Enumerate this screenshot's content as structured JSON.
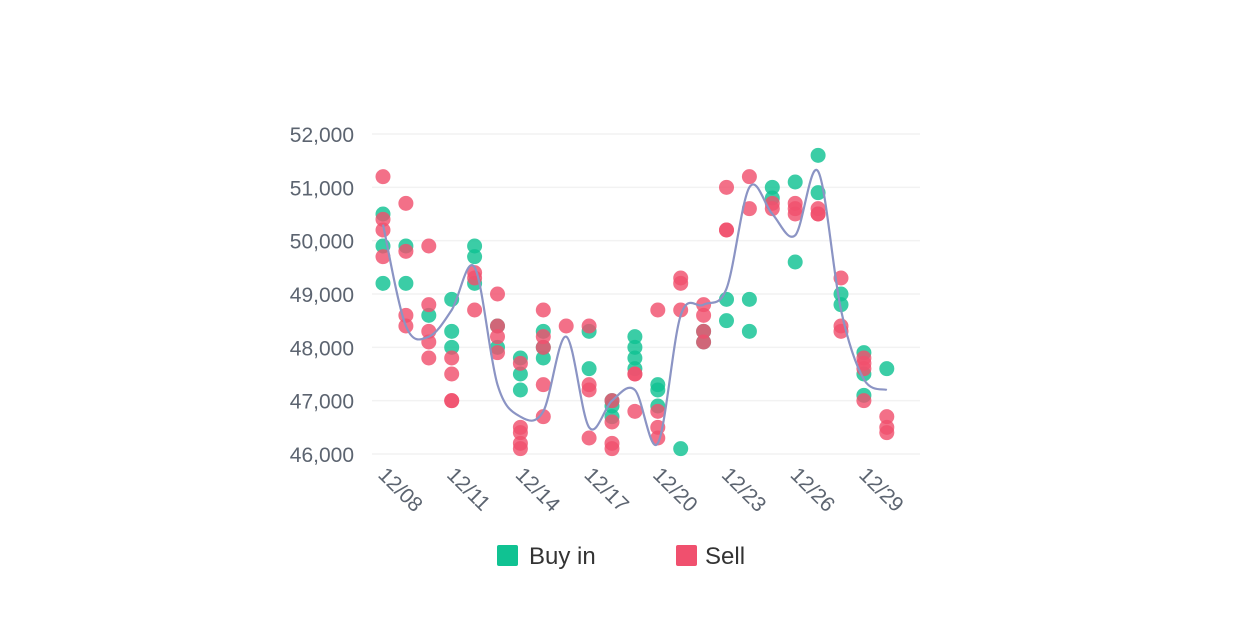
{
  "chart_data": {
    "type": "scatter",
    "title": "",
    "xlabel": "",
    "ylabel": "",
    "ylim": [
      46000,
      52000
    ],
    "y_ticks": [
      "52,000",
      "51,000",
      "50,000",
      "49,000",
      "48,000",
      "47,000",
      "46,000"
    ],
    "x_ticks": [
      "12/08",
      "12/11",
      "12/14",
      "12/17",
      "12/20",
      "12/23",
      "12/26",
      "12/29"
    ],
    "grid": true,
    "legend_position": "bottom",
    "colors": {
      "buy": "#10c292",
      "sell": "#f0506e",
      "trend": "#8b94c4"
    },
    "trend_line": {
      "x": [
        "12/08",
        "12/09",
        "12/10",
        "12/11",
        "12/12",
        "12/13",
        "12/14",
        "12/15",
        "12/16",
        "12/17",
        "12/18",
        "12/19",
        "12/20",
        "12/21",
        "12/22",
        "12/23",
        "12/24",
        "12/25",
        "12/26",
        "12/27",
        "12/28",
        "12/29",
        "12/30"
      ],
      "y": [
        50300,
        48400,
        48200,
        48700,
        49500,
        47300,
        46700,
        46800,
        48200,
        46500,
        47000,
        47200,
        46200,
        48600,
        48800,
        49100,
        51000,
        50500,
        50100,
        51300,
        48700,
        47400,
        47200
      ]
    },
    "series": [
      {
        "name": "Buy in",
        "x": [
          "12/08",
          "12/08",
          "12/08",
          "12/09",
          "12/09",
          "12/10",
          "12/11",
          "12/11",
          "12/11",
          "12/12",
          "12/12",
          "12/12",
          "12/13",
          "12/13",
          "12/14",
          "12/14",
          "12/14",
          "12/15",
          "12/15",
          "12/15",
          "12/17",
          "12/17",
          "12/18",
          "12/18",
          "12/18",
          "12/19",
          "12/19",
          "12/19",
          "12/19",
          "12/20",
          "12/20",
          "12/20",
          "12/21",
          "12/22",
          "12/22",
          "12/23",
          "12/23",
          "12/24",
          "12/24",
          "12/25",
          "12/25",
          "12/26",
          "12/26",
          "12/27",
          "12/27",
          "12/28",
          "12/28",
          "12/29",
          "12/29",
          "12/29",
          "12/30"
        ],
        "y": [
          50500,
          49900,
          49200,
          49900,
          49200,
          48600,
          48900,
          48300,
          48000,
          49900,
          49700,
          49200,
          48000,
          48400,
          47800,
          47500,
          47200,
          48300,
          48000,
          47800,
          48300,
          47600,
          47000,
          46900,
          46700,
          48200,
          48000,
          47800,
          47600,
          47300,
          47200,
          46900,
          46100,
          48300,
          48100,
          48500,
          48900,
          48300,
          48900,
          51000,
          50800,
          51100,
          49600,
          51600,
          50900,
          49000,
          48800,
          47900,
          47500,
          47100,
          47600
        ]
      },
      {
        "name": "Sell",
        "x": [
          "12/08",
          "12/08",
          "12/08",
          "12/08",
          "12/09",
          "12/09",
          "12/09",
          "12/09",
          "12/10",
          "12/10",
          "12/10",
          "12/10",
          "12/10",
          "12/11",
          "12/11",
          "12/11",
          "12/11",
          "12/12",
          "12/12",
          "12/12",
          "12/13",
          "12/13",
          "12/13",
          "12/13",
          "12/14",
          "12/14",
          "12/14",
          "12/14",
          "12/14",
          "12/15",
          "12/15",
          "12/15",
          "12/15",
          "12/15",
          "12/16",
          "12/17",
          "12/17",
          "12/17",
          "12/17",
          "12/18",
          "12/18",
          "12/18",
          "12/18",
          "12/19",
          "12/19",
          "12/19",
          "12/20",
          "12/20",
          "12/20",
          "12/20",
          "12/21",
          "12/21",
          "12/21",
          "12/22",
          "12/22",
          "12/22",
          "12/22",
          "12/23",
          "12/23",
          "12/23",
          "12/24",
          "12/24",
          "12/25",
          "12/25",
          "12/26",
          "12/26",
          "12/26",
          "12/27",
          "12/27",
          "12/27",
          "12/28",
          "12/28",
          "12/28",
          "12/29",
          "12/29",
          "12/29",
          "12/29",
          "12/30",
          "12/30",
          "12/30"
        ],
        "y": [
          51200,
          50400,
          50200,
          49700,
          50700,
          49800,
          48600,
          48400,
          49900,
          48800,
          48300,
          48100,
          47800,
          47800,
          47500,
          47000,
          47000,
          49400,
          49300,
          48700,
          49000,
          48400,
          48200,
          47900,
          47700,
          46500,
          46400,
          46200,
          46100,
          48000,
          47300,
          46700,
          48700,
          48200,
          48400,
          47300,
          47200,
          46300,
          48400,
          47000,
          46600,
          46200,
          46100,
          47500,
          47500,
          46800,
          48700,
          46800,
          46500,
          46300,
          49300,
          49200,
          48700,
          48800,
          48600,
          48300,
          48100,
          50200,
          50200,
          51000,
          51200,
          50600,
          50700,
          50600,
          50700,
          50500,
          50600,
          50600,
          50500,
          50500,
          49300,
          48400,
          48300,
          47800,
          47700,
          47600,
          47000,
          46700,
          46500,
          46400
        ]
      }
    ]
  }
}
